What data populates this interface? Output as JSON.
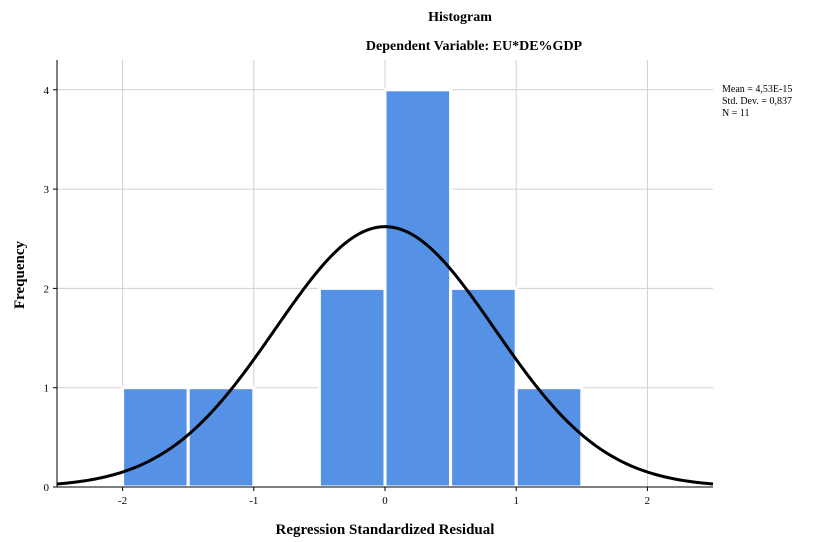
{
  "chart_data": {
    "type": "bar",
    "title": "Histogram",
    "subtitle": "Dependent Variable: EU*DE%GDP",
    "xlabel": "Regression Standardized Residual",
    "ylabel": "Frequency",
    "xlim": [
      -2.5,
      2.5
    ],
    "ylim": [
      0,
      4.3
    ],
    "xticks": [
      -2,
      -1,
      0,
      1,
      2
    ],
    "yticks": [
      0,
      1,
      2,
      3,
      4
    ],
    "xtick_labels": [
      "-2",
      "-1",
      "0",
      "1",
      "2"
    ],
    "ytick_labels": [
      "0",
      "1",
      "2",
      "3",
      "4"
    ],
    "bins": [
      {
        "start": -2.0,
        "end": -1.5,
        "count": 1
      },
      {
        "start": -1.5,
        "end": -1.0,
        "count": 1
      },
      {
        "start": -1.0,
        "end": -0.5,
        "count": 0
      },
      {
        "start": -0.5,
        "end": 0.0,
        "count": 2
      },
      {
        "start": 0.0,
        "end": 0.5,
        "count": 4
      },
      {
        "start": 0.5,
        "end": 1.0,
        "count": 2
      },
      {
        "start": 1.0,
        "end": 1.5,
        "count": 1
      }
    ],
    "normal_curve": {
      "mean": 0.0,
      "std_dev": 0.837,
      "n": 11,
      "bin_width": 0.5
    },
    "stats": {
      "mean": "Mean = 4,53E-15",
      "std_dev": "Std. Dev. = 0,837",
      "n": "N = 11"
    },
    "grid": true,
    "bar_color": "#5591e5",
    "curve_color": "#000000",
    "grid_color": "#d0d0d0"
  }
}
